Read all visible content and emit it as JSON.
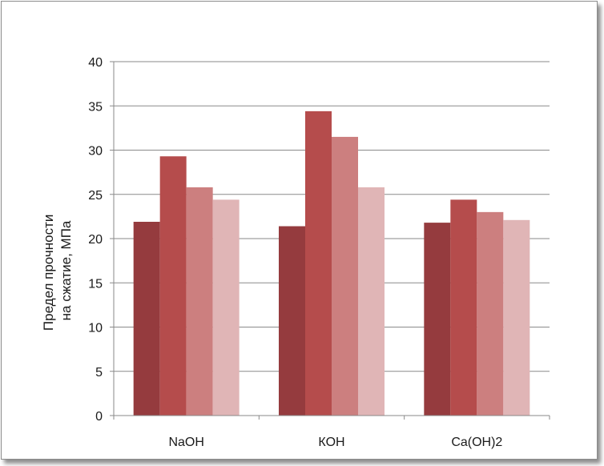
{
  "chart_data": {
    "type": "bar",
    "title": "",
    "xlabel": "",
    "ylabel_lines": [
      "Предел прочности",
      "на сжатие, МПа"
    ],
    "categories": [
      "NaOH",
      "КОН",
      "Ca(OH)2"
    ],
    "series": [
      {
        "values": [
          21.9,
          21.4,
          21.8
        ],
        "color": "#953b3e"
      },
      {
        "values": [
          29.3,
          34.4,
          24.4
        ],
        "color": "#b54c4c"
      },
      {
        "values": [
          25.8,
          31.5,
          23.0
        ],
        "color": "#cc7f7f"
      },
      {
        "values": [
          24.4,
          25.8,
          22.1
        ],
        "color": "#e0b5b6"
      }
    ],
    "ylim": [
      0,
      40
    ],
    "yticks": [
      0,
      5,
      10,
      15,
      20,
      25,
      30,
      35,
      40
    ],
    "grid": true,
    "legend": "none"
  }
}
